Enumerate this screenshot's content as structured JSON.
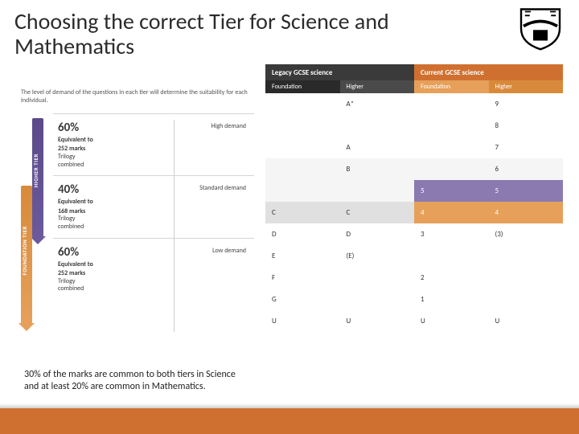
{
  "title": "Choosing the correct Tier for Science and Mathematics",
  "subtitle": "The level of demand of the questions in each tier will determine the suitability for each individual.",
  "tiers": {
    "higher_label": "HIGHER TIER",
    "foundation_label": "FOUNDATION TIER",
    "segments": [
      {
        "pct": "60%",
        "line1": "Equivalent to",
        "line2": "252 marks",
        "line3": "Trilogy",
        "line4": "combined",
        "demand": "High demand"
      },
      {
        "pct": "40%",
        "line1": "Equivalent to",
        "line2": "168 marks",
        "line3": "Trilogy",
        "line4": "combined",
        "demand": "Standard demand"
      },
      {
        "pct": "60%",
        "line1": "Equivalent to",
        "line2": "252 marks",
        "line3": "Trilogy",
        "line4": "combined",
        "demand": "Low demand"
      }
    ]
  },
  "note": "30% of the marks are common to both tiers in Science and at least 20% are common in Mathematics.",
  "grades": {
    "header_legacy": "Legacy GCSE science",
    "header_current": "Current GCSE science",
    "sub": [
      "Foundation",
      "Higher",
      "Foundation",
      "Higher"
    ],
    "rows": [
      {
        "c": [
          "",
          "A*",
          "",
          "9"
        ],
        "styles": [
          "",
          "",
          "",
          ""
        ]
      },
      {
        "c": [
          "",
          "",
          "",
          "8"
        ],
        "styles": [
          "",
          "",
          "",
          ""
        ]
      },
      {
        "c": [
          "",
          "A",
          "",
          "7"
        ],
        "styles": [
          "",
          "",
          "",
          ""
        ]
      },
      {
        "c": [
          "",
          "B",
          "",
          "6"
        ],
        "styles": [
          "s",
          "s",
          "s",
          "s"
        ]
      },
      {
        "c": [
          "",
          "",
          "5",
          "5"
        ],
        "styles": [
          "s",
          "s",
          "hi",
          "hi"
        ]
      },
      {
        "c": [
          "C",
          "C",
          "4",
          "4"
        ],
        "styles": [
          "mid",
          "mid",
          "or",
          "or"
        ]
      },
      {
        "c": [
          "D",
          "D",
          "3",
          "(3)"
        ],
        "styles": [
          "",
          "",
          "",
          ""
        ]
      },
      {
        "c": [
          "E",
          "(E)",
          "",
          ""
        ],
        "styles": [
          "",
          "",
          "",
          ""
        ]
      },
      {
        "c": [
          "F",
          "",
          "2",
          ""
        ],
        "styles": [
          "",
          "",
          "",
          ""
        ]
      },
      {
        "c": [
          "G",
          "",
          "1",
          ""
        ],
        "styles": [
          "",
          "",
          "",
          ""
        ]
      },
      {
        "c": [
          "U",
          "U",
          "U",
          "U"
        ],
        "styles": [
          "",
          "",
          "",
          ""
        ]
      }
    ]
  },
  "colors": {
    "accent_orange": "#d07030",
    "higher_purple": "#6b5a9b",
    "foundation_orange": "#e6a05a",
    "highlight_purple": "#8a7ab0"
  }
}
